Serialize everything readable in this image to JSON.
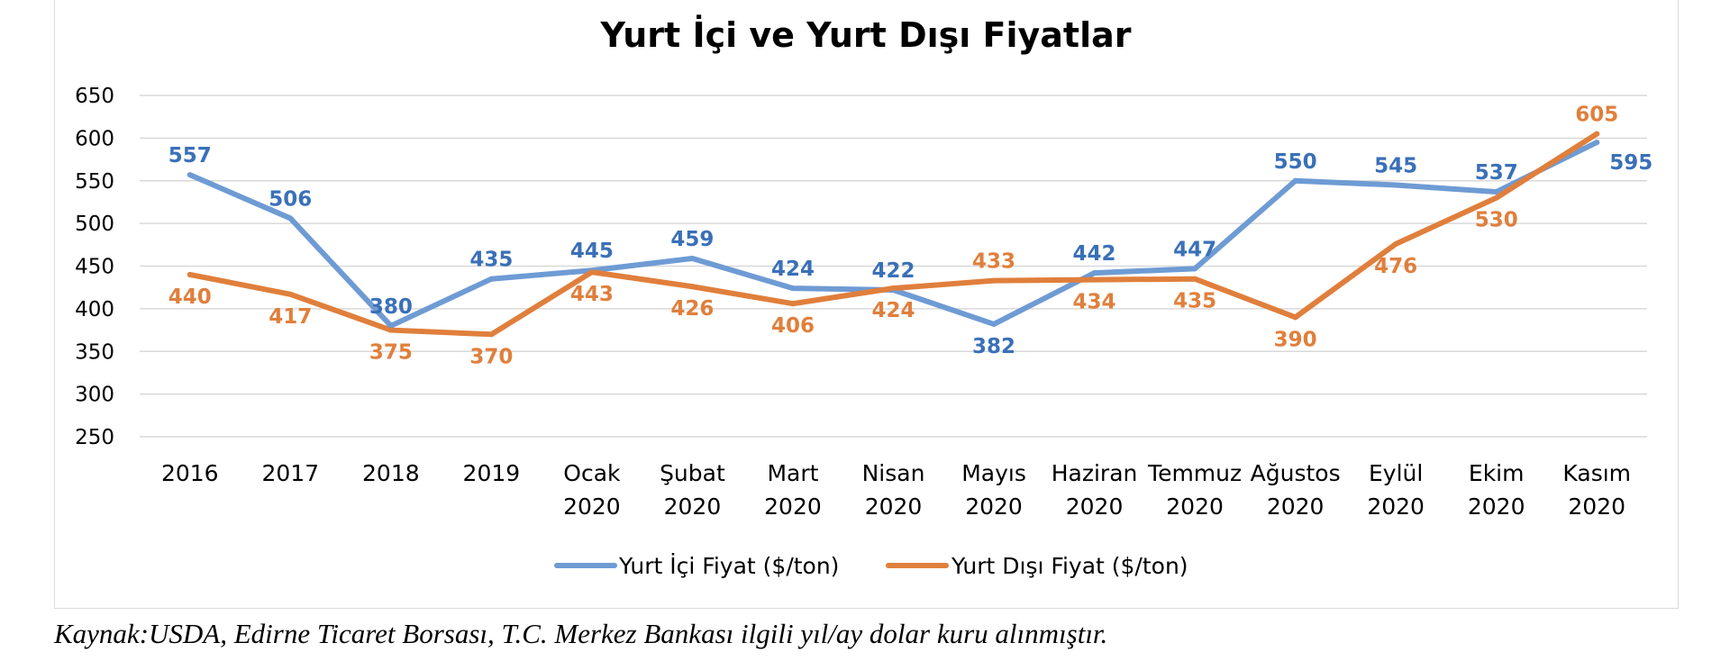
{
  "chart_data": {
    "type": "line",
    "title": "Yurt İçi ve Yurt Dışı Fiyatlar",
    "categories": [
      [
        "2016"
      ],
      [
        "2017"
      ],
      [
        "2018"
      ],
      [
        "2019"
      ],
      [
        "Ocak",
        "2020"
      ],
      [
        "Şubat",
        "2020"
      ],
      [
        "Mart",
        "2020"
      ],
      [
        "Nisan",
        "2020"
      ],
      [
        "Mayıs",
        "2020"
      ],
      [
        "Haziran",
        "2020"
      ],
      [
        "Temmuz",
        "2020"
      ],
      [
        "Ağustos",
        "2020"
      ],
      [
        "Eylül",
        "2020"
      ],
      [
        "Ekim",
        "2020"
      ],
      [
        "Kasım",
        "2020"
      ]
    ],
    "ylim": [
      250,
      650
    ],
    "yticks": [
      250,
      300,
      350,
      400,
      450,
      500,
      550,
      600,
      650
    ],
    "grid": true,
    "legend_position": "bottom",
    "series": [
      {
        "name": "Yurt İçi Fiyat ($/ton)",
        "color": "#6e9bd4",
        "label_color": "#3a70b8",
        "values": [
          557,
          506,
          380,
          435,
          445,
          459,
          424,
          422,
          382,
          442,
          447,
          550,
          545,
          537,
          595
        ],
        "label_pos": [
          "above",
          "above",
          "above",
          "above",
          "above",
          "above",
          "above",
          "above",
          "below",
          "above",
          "above",
          "above",
          "above",
          "above",
          "right"
        ]
      },
      {
        "name": "Yurt Dışı Fiyat ($/ton)",
        "color": "#e07f3c",
        "label_color": "#e07f3c",
        "values": [
          440,
          417,
          375,
          370,
          443,
          426,
          406,
          424,
          433,
          434,
          435,
          390,
          476,
          530,
          605
        ],
        "label_pos": [
          "below",
          "below",
          "below",
          "below",
          "below",
          "below",
          "below",
          "below",
          "above",
          "below",
          "below",
          "below",
          "below",
          "below",
          "above"
        ]
      }
    ]
  },
  "source_note": "Kaynak:USDA, Edirne Ticaret Borsası, T.C. Merkez Bankası ilgili yıl/ay dolar kuru alınmıştır."
}
